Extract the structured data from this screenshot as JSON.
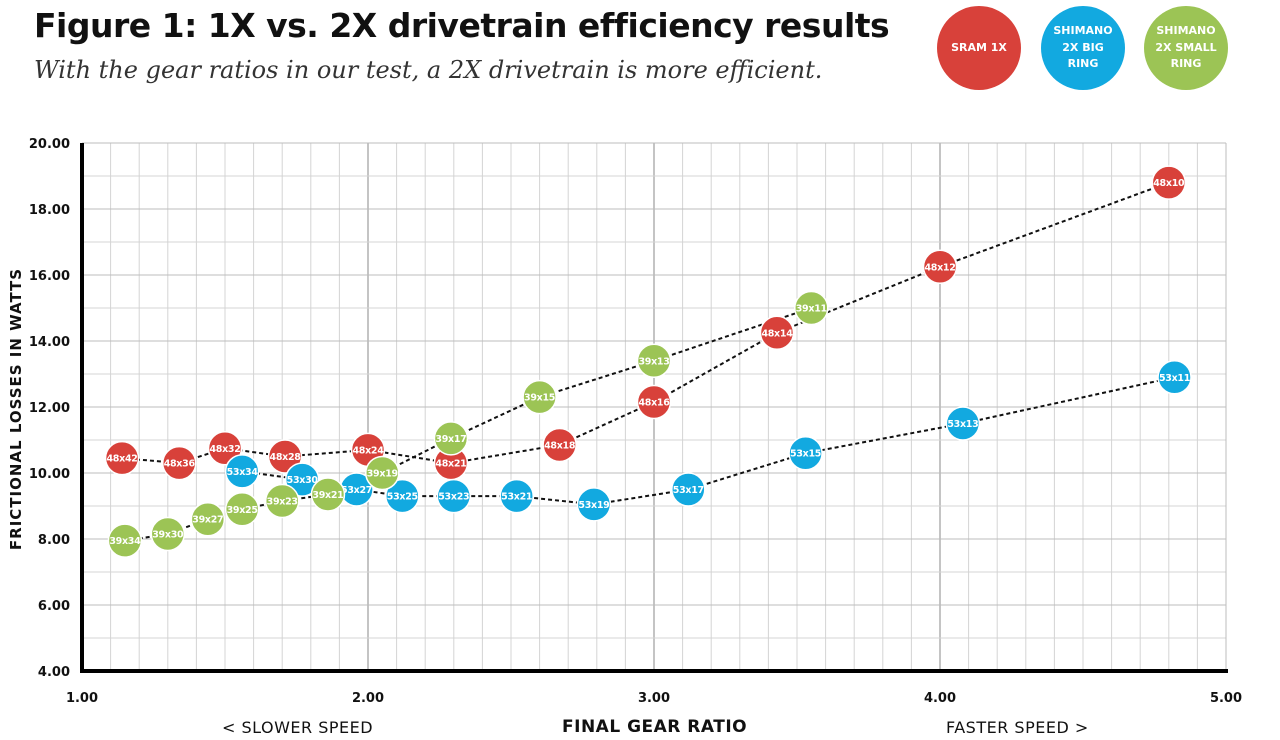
{
  "title": "Figure 1: 1X vs. 2X drivetrain efficiency results",
  "subtitle": "With the gear ratios in our test, a 2X drivetrain is more efficient.",
  "legend": [
    {
      "label": "SRAM 1X",
      "color": "#d8413a"
    },
    {
      "label": "SHIMANO 2X BIG RING",
      "color": "#12a9e0"
    },
    {
      "label": "SHIMANO 2X SMALL RING",
      "color": "#9cc455"
    }
  ],
  "footer": {
    "left": "< SLOWER SPEED",
    "center": "FINAL GEAR RATIO",
    "right": "FASTER SPEED >"
  },
  "chart_data": {
    "type": "scatter",
    "title": "Figure 1: 1X vs. 2X drivetrain efficiency results",
    "subtitle": "With the gear ratios in our test, a 2X drivetrain is more efficient.",
    "xlabel": "FINAL GEAR RATIO",
    "ylabel": "FRICTIONAL LOSSES IN WATTS",
    "xlim": [
      1.0,
      5.0
    ],
    "ylim": [
      4.0,
      20.0
    ],
    "x_ticks": [
      "1.00",
      "2.00",
      "3.00",
      "4.00",
      "5.00"
    ],
    "y_ticks": [
      "4.00",
      "6.00",
      "8.00",
      "10.00",
      "12.00",
      "14.00",
      "16.00",
      "18.00",
      "20.00"
    ],
    "grid": true,
    "connected": "dashed",
    "series": [
      {
        "name": "SRAM 1X",
        "color": "#d8413a",
        "points": [
          {
            "label": "48x42",
            "x": 1.14,
            "y": 10.45
          },
          {
            "label": "48x36",
            "x": 1.34,
            "y": 10.3
          },
          {
            "label": "48x32",
            "x": 1.5,
            "y": 10.75
          },
          {
            "label": "48x28",
            "x": 1.71,
            "y": 10.5
          },
          {
            "label": "48x24",
            "x": 2.0,
            "y": 10.7
          },
          {
            "label": "48x21",
            "x": 2.29,
            "y": 10.3
          },
          {
            "label": "48x18",
            "x": 2.67,
            "y": 10.85
          },
          {
            "label": "48x16",
            "x": 3.0,
            "y": 12.15
          },
          {
            "label": "48x14",
            "x": 3.43,
            "y": 14.25
          },
          {
            "label": "48x12",
            "x": 4.0,
            "y": 16.25
          },
          {
            "label": "48x10",
            "x": 4.8,
            "y": 18.8
          }
        ]
      },
      {
        "name": "SHIMANO 2X BIG RING",
        "color": "#12a9e0",
        "points": [
          {
            "label": "53x34",
            "x": 1.56,
            "y": 10.05
          },
          {
            "label": "53x30",
            "x": 1.77,
            "y": 9.8
          },
          {
            "label": "53x27",
            "x": 1.96,
            "y": 9.5
          },
          {
            "label": "53x25",
            "x": 2.12,
            "y": 9.3
          },
          {
            "label": "53x23",
            "x": 2.3,
            "y": 9.3
          },
          {
            "label": "53x21",
            "x": 2.52,
            "y": 9.3
          },
          {
            "label": "53x19",
            "x": 2.79,
            "y": 9.05
          },
          {
            "label": "53x17",
            "x": 3.12,
            "y": 9.5
          },
          {
            "label": "53x15",
            "x": 3.53,
            "y": 10.6
          },
          {
            "label": "53x13",
            "x": 4.08,
            "y": 11.5
          },
          {
            "label": "53x11",
            "x": 4.82,
            "y": 12.9
          }
        ]
      },
      {
        "name": "SHIMANO 2X SMALL RING",
        "color": "#9cc455",
        "points": [
          {
            "label": "39x34",
            "x": 1.15,
            "y": 7.95
          },
          {
            "label": "39x30",
            "x": 1.3,
            "y": 8.15
          },
          {
            "label": "39x27",
            "x": 1.44,
            "y": 8.6
          },
          {
            "label": "39x25",
            "x": 1.56,
            "y": 8.9
          },
          {
            "label": "39x23",
            "x": 1.7,
            "y": 9.15
          },
          {
            "label": "39x21",
            "x": 1.86,
            "y": 9.35
          },
          {
            "label": "39x19",
            "x": 2.05,
            "y": 10.0
          },
          {
            "label": "39x17",
            "x": 2.29,
            "y": 11.05
          },
          {
            "label": "39x15",
            "x": 2.6,
            "y": 12.3
          },
          {
            "label": "39x13",
            "x": 3.0,
            "y": 13.4
          },
          {
            "label": "39x11",
            "x": 3.55,
            "y": 15.0
          }
        ]
      }
    ]
  }
}
